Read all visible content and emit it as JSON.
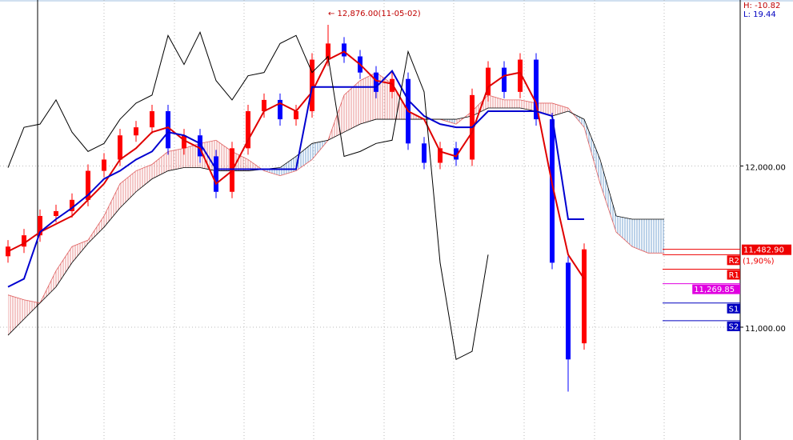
{
  "chart_data": {
    "type": "candlestick",
    "annotation": "← 12,876.00(11-05-02)",
    "hl_labels": [
      "H: -10.82",
      "L: 19.44"
    ],
    "ylim": [
      10300,
      13030
    ],
    "xlim": [
      -0.5,
      45.75
    ],
    "yticks": [
      {
        "value": 12000,
        "label": "12,000.00"
      },
      {
        "value": 11000,
        "label": "11,000.00"
      }
    ],
    "grid": true,
    "up_color": "#ff0000",
    "down_color": "#0000ff",
    "candles": {
      "open": [
        11440,
        11500,
        11570,
        11690,
        11720,
        11790,
        11970,
        12040,
        12190,
        12240,
        12340,
        12110,
        12190,
        12060,
        11840,
        12110,
        12340,
        12410,
        12290,
        12340,
        12660,
        12760,
        12680,
        12580,
        12460,
        12540,
        12140,
        12020,
        12110,
        12040,
        12440,
        12610,
        12460,
        12660,
        12290,
        11400,
        10900
      ],
      "high": [
        11540,
        11610,
        11730,
        11760,
        11830,
        12010,
        12080,
        12230,
        12280,
        12380,
        12380,
        12230,
        12230,
        12100,
        12150,
        12380,
        12450,
        12450,
        12380,
        12700,
        12876,
        12800,
        12720,
        12620,
        12580,
        12580,
        12180,
        12150,
        12150,
        12480,
        12650,
        12650,
        12700,
        12700,
        12330,
        11440,
        11520
      ],
      "low": [
        11400,
        11460,
        11530,
        11650,
        11680,
        11750,
        11930,
        12000,
        12150,
        12200,
        12070,
        12070,
        12020,
        11800,
        11800,
        12070,
        12300,
        12250,
        12250,
        12300,
        12620,
        12640,
        12540,
        12420,
        12420,
        12100,
        11980,
        11980,
        12000,
        12000,
        12400,
        12420,
        12420,
        12250,
        11360,
        10600,
        10860
      ],
      "close": [
        11500,
        11570,
        11690,
        11720,
        11790,
        11970,
        12040,
        12190,
        12240,
        12340,
        12110,
        12190,
        12060,
        11840,
        12110,
        12340,
        12410,
        12290,
        12340,
        12660,
        12760,
        12680,
        12580,
        12460,
        12540,
        12140,
        12020,
        12110,
        12040,
        12440,
        12610,
        12460,
        12660,
        12290,
        11400,
        10800,
        11482.9
      ]
    },
    "lines": [
      {
        "color": "#e00000",
        "values": [
          11470,
          11520,
          11590,
          11640,
          11690,
          11790,
          11890,
          12040,
          12110,
          12210,
          12240,
          12160,
          12110,
          11890,
          11970,
          12160,
          12340,
          12390,
          12340,
          12460,
          12660,
          12710,
          12630,
          12530,
          12510,
          12340,
          12290,
          12090,
          12060,
          12210,
          12490,
          12560,
          12580,
          12390,
          11890,
          11450,
          11300
        ]
      },
      {
        "color": "#0000d0",
        "values": [
          11250,
          11300,
          11590,
          11670,
          11740,
          11820,
          11920,
          11970,
          12040,
          12090,
          12210,
          12190,
          12140,
          11980,
          11980,
          11980,
          11980,
          11980,
          11980,
          12490,
          12490,
          12490,
          12490,
          12490,
          12590,
          12410,
          12310,
          12260,
          12240,
          12240,
          12340,
          12340,
          12340,
          12340,
          12310,
          11670,
          11670
        ]
      },
      {
        "color": "#000000",
        "values": [
          11990,
          12240,
          12260,
          12410,
          12210,
          12090,
          12140,
          12290,
          12390,
          12440,
          12810,
          12630,
          12830,
          12530,
          12410,
          12560,
          12580,
          12760,
          12810,
          12580,
          12680,
          12060,
          12090,
          12140,
          12160,
          12710,
          12460,
          11400,
          10800,
          10850,
          11450
        ]
      }
    ],
    "cloud": {
      "up_color": "#e06060",
      "down_color": "#4080c0",
      "span_a": [
        11200,
        11170,
        11150,
        11350,
        11500,
        11540,
        11690,
        11890,
        11970,
        12010,
        12090,
        12110,
        12140,
        12160,
        12090,
        12040,
        11970,
        11940,
        11970,
        12040,
        12160,
        12440,
        12530,
        12580,
        12510,
        12340,
        12290,
        12290,
        12260,
        12340,
        12440,
        12410,
        12410,
        12390,
        12390,
        12360,
        12240,
        11890,
        11590,
        11500,
        11460,
        11460
      ],
      "span_b": [
        10950,
        11050,
        11150,
        11250,
        11400,
        11520,
        11620,
        11740,
        11840,
        11920,
        11970,
        11990,
        11990,
        11970,
        11970,
        11970,
        11980,
        11990,
        12060,
        12140,
        12160,
        12210,
        12260,
        12290,
        12290,
        12290,
        12290,
        12290,
        12290,
        12310,
        12360,
        12360,
        12360,
        12340,
        12310,
        12340,
        12290,
        12040,
        11690,
        11670,
        11670,
        11670
      ]
    },
    "last_price": {
      "value": 11482.9,
      "label": "11,482.90",
      "change": "(1,90%)",
      "color": "#ee0000"
    },
    "levels": [
      {
        "label": "R2",
        "value": 11450,
        "color": "#ee0000"
      },
      {
        "label": "R1",
        "value": 11360,
        "color": "#ee0000"
      },
      {
        "label": "11,269.85",
        "value": 11269.85,
        "color": "#e000e0"
      },
      {
        "label": "S1",
        "value": 11150,
        "color": "#0000c0"
      },
      {
        "label": "S2",
        "value": 11040,
        "color": "#0000c0"
      }
    ]
  }
}
